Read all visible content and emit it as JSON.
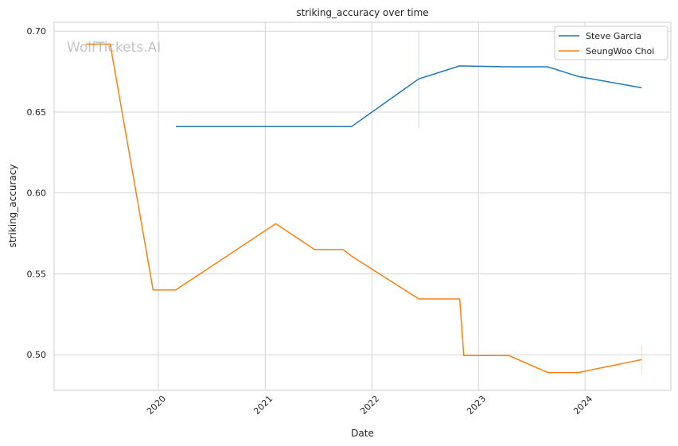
{
  "chart_data": {
    "type": "line",
    "title": "striking_accuracy over time",
    "xlabel": "Date",
    "ylabel": "striking_accuracy",
    "watermark": "WolfTickets.AI",
    "x_tick_labels": [
      "2020",
      "2021",
      "2022",
      "2023",
      "2024"
    ],
    "y_tick_labels": [
      "0.50",
      "0.55",
      "0.60",
      "0.65",
      "0.70"
    ],
    "y_ticks": [
      0.5,
      0.55,
      0.6,
      0.65,
      0.7
    ],
    "xlim": [
      "2019-01-09",
      "2024-10-21"
    ],
    "ylim": [
      0.478,
      0.7055
    ],
    "grid": true,
    "legend_position": "top-right",
    "series": [
      {
        "name": "Steve Garcia",
        "color": "#1f77b4",
        "points": [
          [
            "2020-03-01",
            0.641
          ],
          [
            "2021-10-23",
            0.641
          ],
          [
            "2022-06-11",
            0.6705
          ],
          [
            "2022-10-29",
            0.6785
          ],
          [
            "2023-04-15",
            0.678
          ],
          [
            "2023-08-26",
            0.678
          ],
          [
            "2023-12-09",
            0.672
          ],
          [
            "2024-07-13",
            0.665
          ]
        ],
        "band": {
          "x": "2022-06-11",
          "low": 0.64,
          "high": 0.7
        }
      },
      {
        "name": "SeungWoo Choi",
        "color": "#ff7f0e",
        "points": [
          [
            "2019-04-27",
            0.692
          ],
          [
            "2019-07-20",
            0.692
          ],
          [
            "2019-12-14",
            0.54
          ],
          [
            "2020-02-29",
            0.54
          ],
          [
            "2021-02-06",
            0.581
          ],
          [
            "2021-06-19",
            0.565
          ],
          [
            "2021-09-25",
            0.565
          ],
          [
            "2021-10-23",
            0.561
          ],
          [
            "2022-06-11",
            0.5345
          ],
          [
            "2022-10-29",
            0.5345
          ],
          [
            "2022-11-12",
            0.4995
          ],
          [
            "2023-04-15",
            0.4995
          ],
          [
            "2023-08-26",
            0.489
          ],
          [
            "2023-12-09",
            0.489
          ],
          [
            "2024-07-13",
            0.497
          ]
        ],
        "band": {
          "x": "2024-07-13",
          "low": 0.488,
          "high": 0.506
        }
      }
    ]
  }
}
